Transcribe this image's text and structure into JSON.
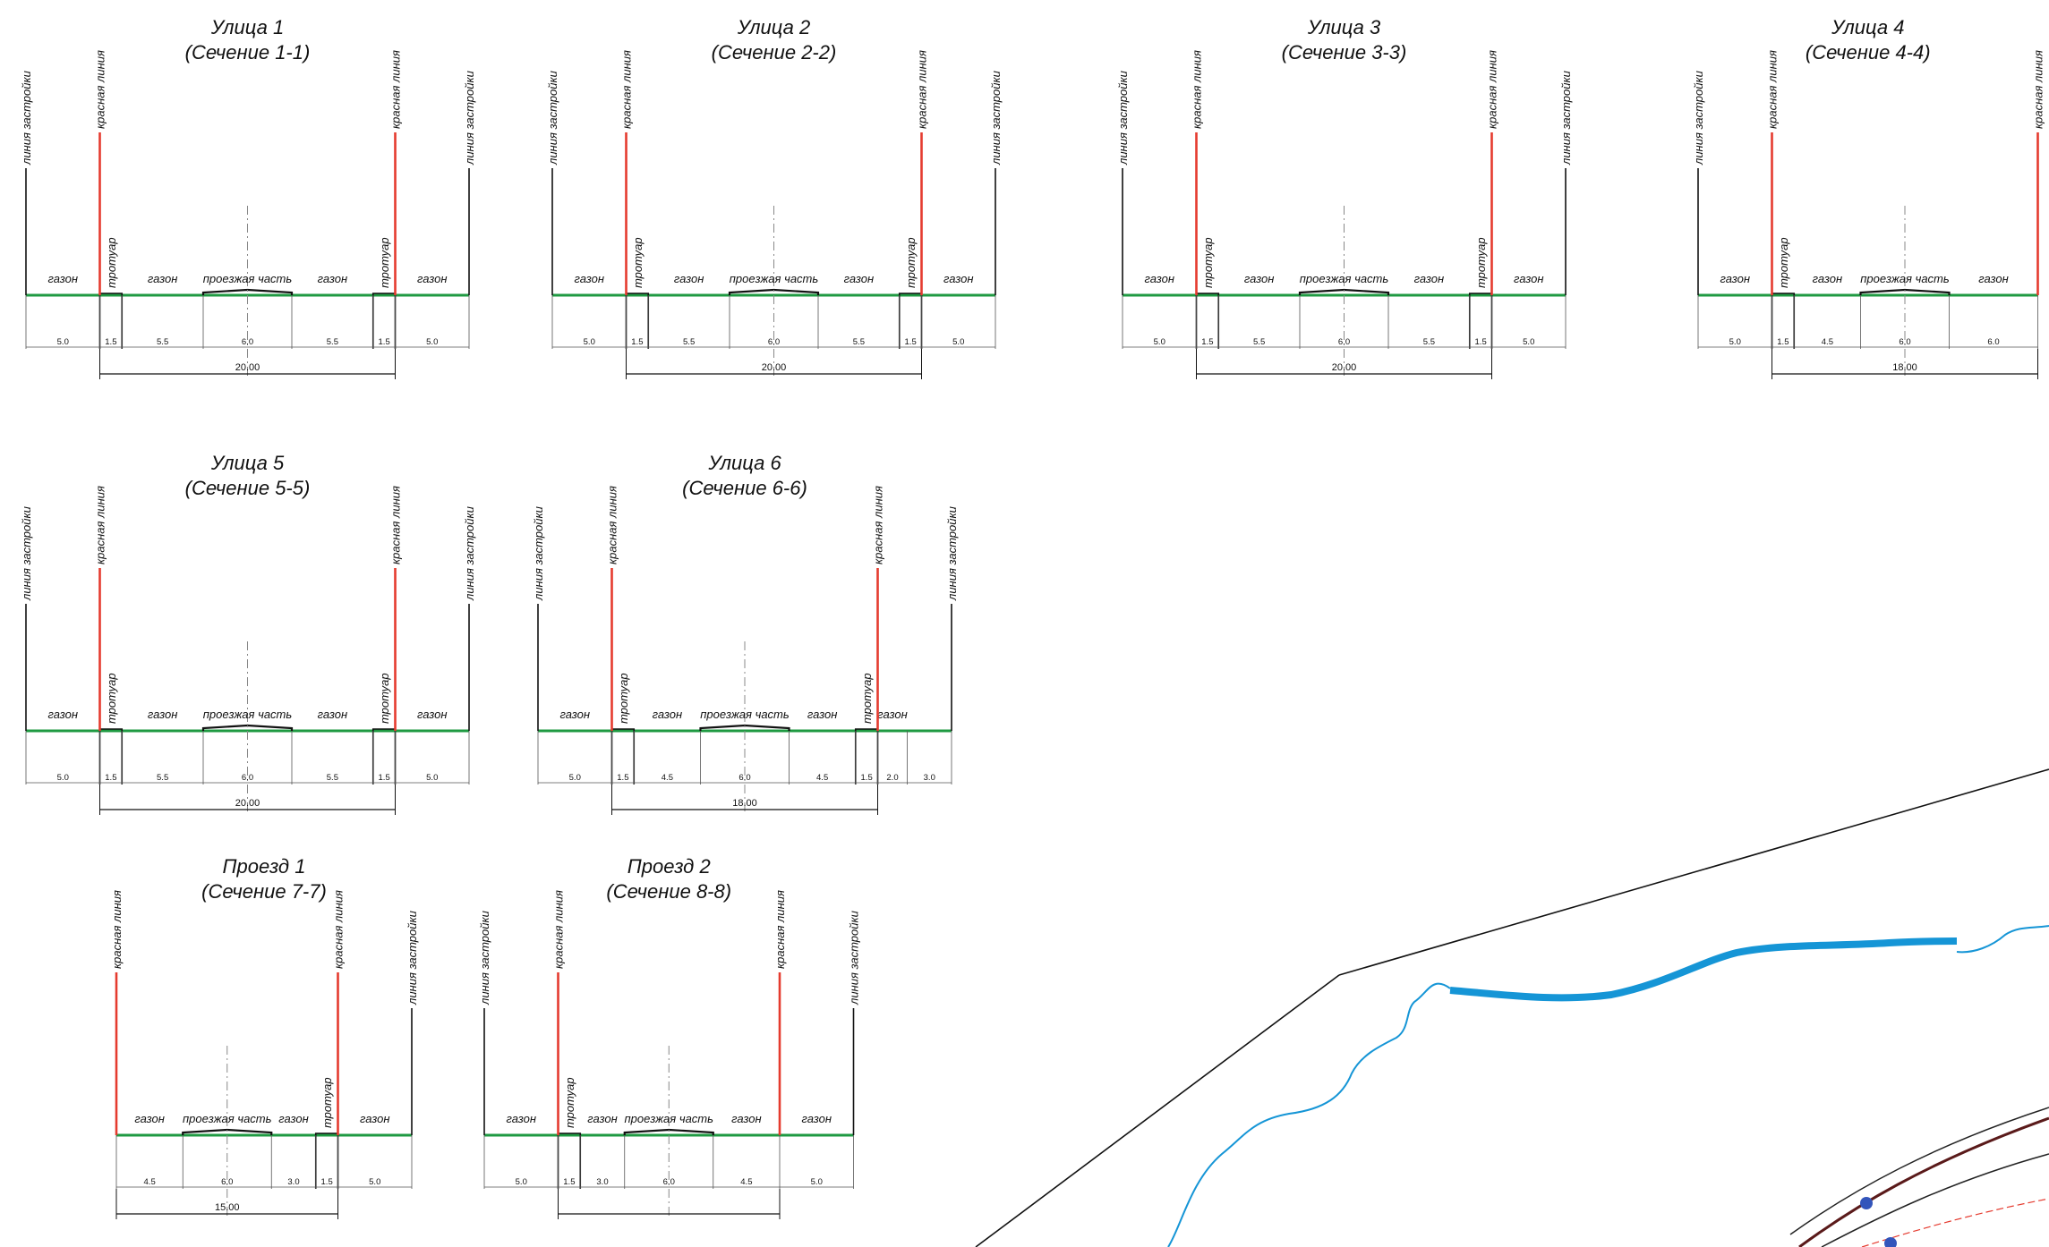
{
  "labels": {
    "build_line": "линия застройки",
    "red_line": "красная линия"
  },
  "colors": {
    "red_line": "#e53b2f",
    "green_line": "#1f9a42",
    "river": "#1595d6",
    "ink": "#111111"
  },
  "sections": [
    {
      "title": "Улица 1",
      "subtitle": "(Сечение 1-1)",
      "segments": [
        {
          "w": 5.0,
          "label": "газон",
          "dim": "5.0"
        },
        {
          "w": 1.5,
          "label": "тротуар",
          "dim": "1.5",
          "kind": "sidewalk"
        },
        {
          "w": 5.5,
          "label": "газон",
          "dim": "5.5"
        },
        {
          "w": 6.0,
          "label": "проезжая часть",
          "dim": "6.0",
          "kind": "road"
        },
        {
          "w": 5.5,
          "label": "газон",
          "dim": "5.5"
        },
        {
          "w": 1.5,
          "label": "тротуар",
          "dim": "1.5",
          "kind": "sidewalk"
        },
        {
          "w": 5.0,
          "label": "газон",
          "dim": "5.0"
        }
      ],
      "lines": [
        {
          "after": 0,
          "type": "build"
        },
        {
          "after": 1,
          "type": "red"
        },
        {
          "after": 6,
          "type": "red"
        },
        {
          "after": 7,
          "type": "build"
        }
      ],
      "total": "20.00"
    },
    {
      "title": "Улица 2",
      "subtitle": "(Сечение 2-2)",
      "segments": [
        {
          "w": 5.0,
          "label": "газон",
          "dim": "5.0"
        },
        {
          "w": 1.5,
          "label": "тротуар",
          "dim": "1.5",
          "kind": "sidewalk"
        },
        {
          "w": 5.5,
          "label": "газон",
          "dim": "5.5"
        },
        {
          "w": 6.0,
          "label": "проезжая часть",
          "dim": "6.0",
          "kind": "road"
        },
        {
          "w": 5.5,
          "label": "газон",
          "dim": "5.5"
        },
        {
          "w": 1.5,
          "label": "тротуар",
          "dim": "1.5",
          "kind": "sidewalk"
        },
        {
          "w": 5.0,
          "label": "газон",
          "dim": "5.0"
        }
      ],
      "lines": [
        {
          "after": 0,
          "type": "build"
        },
        {
          "after": 1,
          "type": "red"
        },
        {
          "after": 6,
          "type": "red"
        },
        {
          "after": 7,
          "type": "build"
        }
      ],
      "total": "20.00"
    },
    {
      "title": "Улица 3",
      "subtitle": "(Сечение 3-3)",
      "segments": [
        {
          "w": 5.0,
          "label": "газон",
          "dim": "5.0"
        },
        {
          "w": 1.5,
          "label": "тротуар",
          "dim": "1.5",
          "kind": "sidewalk"
        },
        {
          "w": 5.5,
          "label": "газон",
          "dim": "5.5"
        },
        {
          "w": 6.0,
          "label": "проезжая часть",
          "dim": "6.0",
          "kind": "road"
        },
        {
          "w": 5.5,
          "label": "газон",
          "dim": "5.5"
        },
        {
          "w": 1.5,
          "label": "тротуар",
          "dim": "1.5",
          "kind": "sidewalk"
        },
        {
          "w": 5.0,
          "label": "газон",
          "dim": "5.0"
        }
      ],
      "lines": [
        {
          "after": 0,
          "type": "build"
        },
        {
          "after": 1,
          "type": "red"
        },
        {
          "after": 6,
          "type": "red"
        },
        {
          "after": 7,
          "type": "build"
        }
      ],
      "total": "20.00"
    },
    {
      "title": "Улица 4",
      "subtitle": "(Сечение 4-4)",
      "segments": [
        {
          "w": 5.0,
          "label": "газон",
          "dim": "5.0"
        },
        {
          "w": 1.5,
          "label": "тротуар",
          "dim": "1.5",
          "kind": "sidewalk"
        },
        {
          "w": 4.5,
          "label": "газон",
          "dim": "4.5"
        },
        {
          "w": 6.0,
          "label": "проезжая часть",
          "dim": "6.0",
          "kind": "road"
        },
        {
          "w": 6.0,
          "label": "газон",
          "dim": "6.0"
        }
      ],
      "lines": [
        {
          "after": 0,
          "type": "build"
        },
        {
          "after": 1,
          "type": "red"
        },
        {
          "after": 5,
          "type": "red"
        }
      ],
      "total": "18.00"
    },
    {
      "title": "Улица 5",
      "subtitle": "(Сечение 5-5)",
      "segments": [
        {
          "w": 5.0,
          "label": "газон",
          "dim": "5.0"
        },
        {
          "w": 1.5,
          "label": "тротуар",
          "dim": "1.5",
          "kind": "sidewalk"
        },
        {
          "w": 5.5,
          "label": "газон",
          "dim": "5.5"
        },
        {
          "w": 6.0,
          "label": "проезжая часть",
          "dim": "6.0",
          "kind": "road"
        },
        {
          "w": 5.5,
          "label": "газон",
          "dim": "5.5"
        },
        {
          "w": 1.5,
          "label": "тротуар",
          "dim": "1.5",
          "kind": "sidewalk"
        },
        {
          "w": 5.0,
          "label": "газон",
          "dim": "5.0"
        }
      ],
      "lines": [
        {
          "after": 0,
          "type": "build"
        },
        {
          "after": 1,
          "type": "red"
        },
        {
          "after": 6,
          "type": "red"
        },
        {
          "after": 7,
          "type": "build"
        }
      ],
      "total": "20.00"
    },
    {
      "title": "Улица 6",
      "subtitle": "(Сечение 6-6)",
      "segments": [
        {
          "w": 5.0,
          "label": "газон",
          "dim": "5.0"
        },
        {
          "w": 1.5,
          "label": "тротуар",
          "dim": "1.5",
          "kind": "sidewalk"
        },
        {
          "w": 4.5,
          "label": "газон",
          "dim": "4.5"
        },
        {
          "w": 6.0,
          "label": "проезжая часть",
          "dim": "6.0",
          "kind": "road"
        },
        {
          "w": 4.5,
          "label": "газон",
          "dim": "4.5"
        },
        {
          "w": 1.5,
          "label": "тротуар",
          "dim": "1.5",
          "kind": "sidewalk"
        },
        {
          "w": 2.0,
          "label": "газон",
          "dim": "2.0"
        },
        {
          "w": 3.0,
          "label": "",
          "dim": "3.0"
        }
      ],
      "lines": [
        {
          "after": 0,
          "type": "build"
        },
        {
          "after": 1,
          "type": "red"
        },
        {
          "after": 6,
          "type": "red"
        },
        {
          "after": 8,
          "type": "build"
        }
      ],
      "total": "18.00"
    },
    {
      "title": "Проезд 1",
      "subtitle": "(Сечение 7-7)",
      "segments": [
        {
          "w": 4.5,
          "label": "газон",
          "dim": "4.5"
        },
        {
          "w": 6.0,
          "label": "проезжая часть",
          "dim": "6.0",
          "kind": "road"
        },
        {
          "w": 3.0,
          "label": "газон",
          "dim": "3.0"
        },
        {
          "w": 1.5,
          "label": "тротуар",
          "dim": "1.5",
          "kind": "sidewalk"
        },
        {
          "w": 5.0,
          "label": "газон",
          "dim": "5.0"
        }
      ],
      "lines": [
        {
          "after": 0,
          "type": "red"
        },
        {
          "after": 4,
          "type": "red"
        },
        {
          "after": 5,
          "type": "build"
        }
      ],
      "total": "15.00"
    },
    {
      "title": "Проезд 2",
      "subtitle": "(Сечение 8-8)",
      "segments": [
        {
          "w": 5.0,
          "label": "газон",
          "dim": "5.0"
        },
        {
          "w": 1.5,
          "label": "тротуар",
          "dim": "1.5",
          "kind": "sidewalk"
        },
        {
          "w": 3.0,
          "label": "газон",
          "dim": "3.0"
        },
        {
          "w": 6.0,
          "label": "проезжая часть",
          "dim": "6.0",
          "kind": "road"
        },
        {
          "w": 4.5,
          "label": "газон",
          "dim": "4.5"
        },
        {
          "w": 5.0,
          "label": "газон",
          "dim": "5.0"
        }
      ],
      "lines": [
        {
          "after": 0,
          "type": "build"
        },
        {
          "after": 1,
          "type": "red"
        },
        {
          "after": 5,
          "type": "red"
        },
        {
          "after": 6,
          "type": "build"
        }
      ],
      "total": ""
    }
  ]
}
